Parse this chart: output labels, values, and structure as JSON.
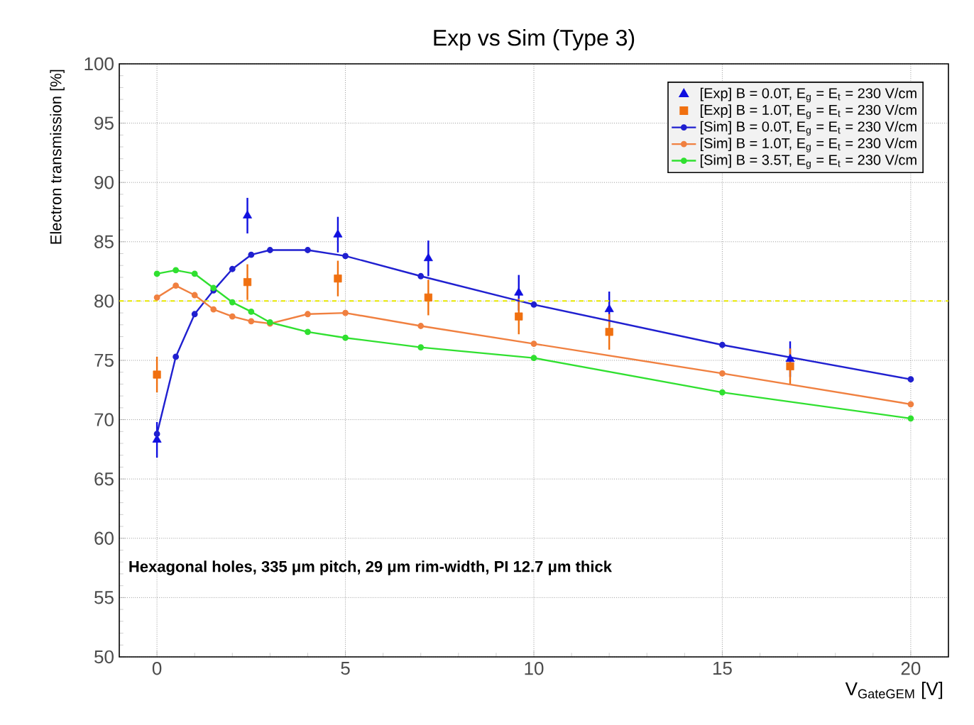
{
  "chart_data": {
    "type": "line",
    "title": "Exp vs Sim (Type 3)",
    "xlabel": "V$_{GateGEM}$ [V]",
    "ylabel": "Electron transmission [%]",
    "xlim": [
      -1,
      21
    ],
    "xticks": [
      0,
      5,
      10,
      15,
      20
    ],
    "ylim": [
      50,
      100
    ],
    "yticks": [
      50,
      55,
      60,
      65,
      70,
      75,
      80,
      85,
      90,
      95,
      100
    ],
    "grid": true,
    "legend": "top right",
    "annotations": [
      "Hexagonal holes, 335 μm pitch, 29 μm rim-width, PI 12.7 μm thick"
    ],
    "ref_lines": [
      {
        "axis": "y",
        "value": 80,
        "color": "#e8e800",
        "line_style": "dashed"
      }
    ],
    "series": [
      {
        "name": "[Exp] B = 0.0T, E$_{g}$ = E$_{t}$ = 230 V/cm",
        "type": "scatter",
        "marker": "triangle",
        "color": "#1010e0",
        "x": [
          0,
          2.4,
          4.8,
          7.2,
          9.6,
          12,
          16.8
        ],
        "values": [
          68.3,
          87.2,
          85.6,
          83.6,
          80.7,
          79.3,
          75.1
        ],
        "errors": [
          1.5,
          1.5,
          1.5,
          1.5,
          1.5,
          1.5,
          1.5
        ]
      },
      {
        "name": "[Exp] B = 1.0T, E$_{g}$ = E$_{t}$ = 230 V/cm",
        "type": "scatter",
        "marker": "square",
        "color": "#f07010",
        "x": [
          0,
          2.4,
          4.8,
          7.2,
          9.6,
          12,
          16.8
        ],
        "values": [
          73.8,
          81.6,
          81.9,
          80.3,
          78.7,
          77.4,
          74.5
        ],
        "errors": [
          1.5,
          1.5,
          1.5,
          1.5,
          1.5,
          1.5,
          1.5
        ]
      },
      {
        "name": "[Sim] B = 0.0T, E$_{g}$ = E$_{t}$ = 230 V/cm",
        "type": "line",
        "marker": "circle",
        "color": "#2020d0",
        "x": [
          0,
          0.5,
          1,
          1.5,
          2,
          2.5,
          3,
          4,
          5,
          7,
          10,
          15,
          20
        ],
        "values": [
          68.8,
          75.3,
          78.9,
          80.9,
          82.7,
          83.9,
          84.3,
          84.3,
          83.8,
          82.1,
          79.7,
          76.3,
          73.4
        ]
      },
      {
        "name": "[Sim] B = 1.0T, E$_{g}$ = E$_{t}$ = 230 V/cm",
        "type": "line",
        "marker": "circle",
        "color": "#f08040",
        "x": [
          0,
          0.5,
          1,
          1.5,
          2,
          2.5,
          3,
          4,
          5,
          7,
          10,
          15,
          20
        ],
        "values": [
          80.3,
          81.3,
          80.5,
          79.3,
          78.7,
          78.3,
          78.1,
          78.9,
          79.0,
          77.9,
          76.4,
          73.9,
          71.3
        ]
      },
      {
        "name": "[Sim] B = 3.5T, E$_{g}$ = E$_{t}$ = 230 V/cm",
        "type": "line",
        "marker": "circle",
        "color": "#30e030",
        "x": [
          0,
          0.5,
          1,
          1.5,
          2,
          2.5,
          3,
          4,
          5,
          7,
          10,
          15,
          20
        ],
        "values": [
          82.3,
          82.6,
          82.3,
          81.1,
          79.9,
          79.1,
          78.2,
          77.4,
          76.9,
          76.1,
          75.2,
          72.3,
          70.1
        ]
      }
    ]
  }
}
